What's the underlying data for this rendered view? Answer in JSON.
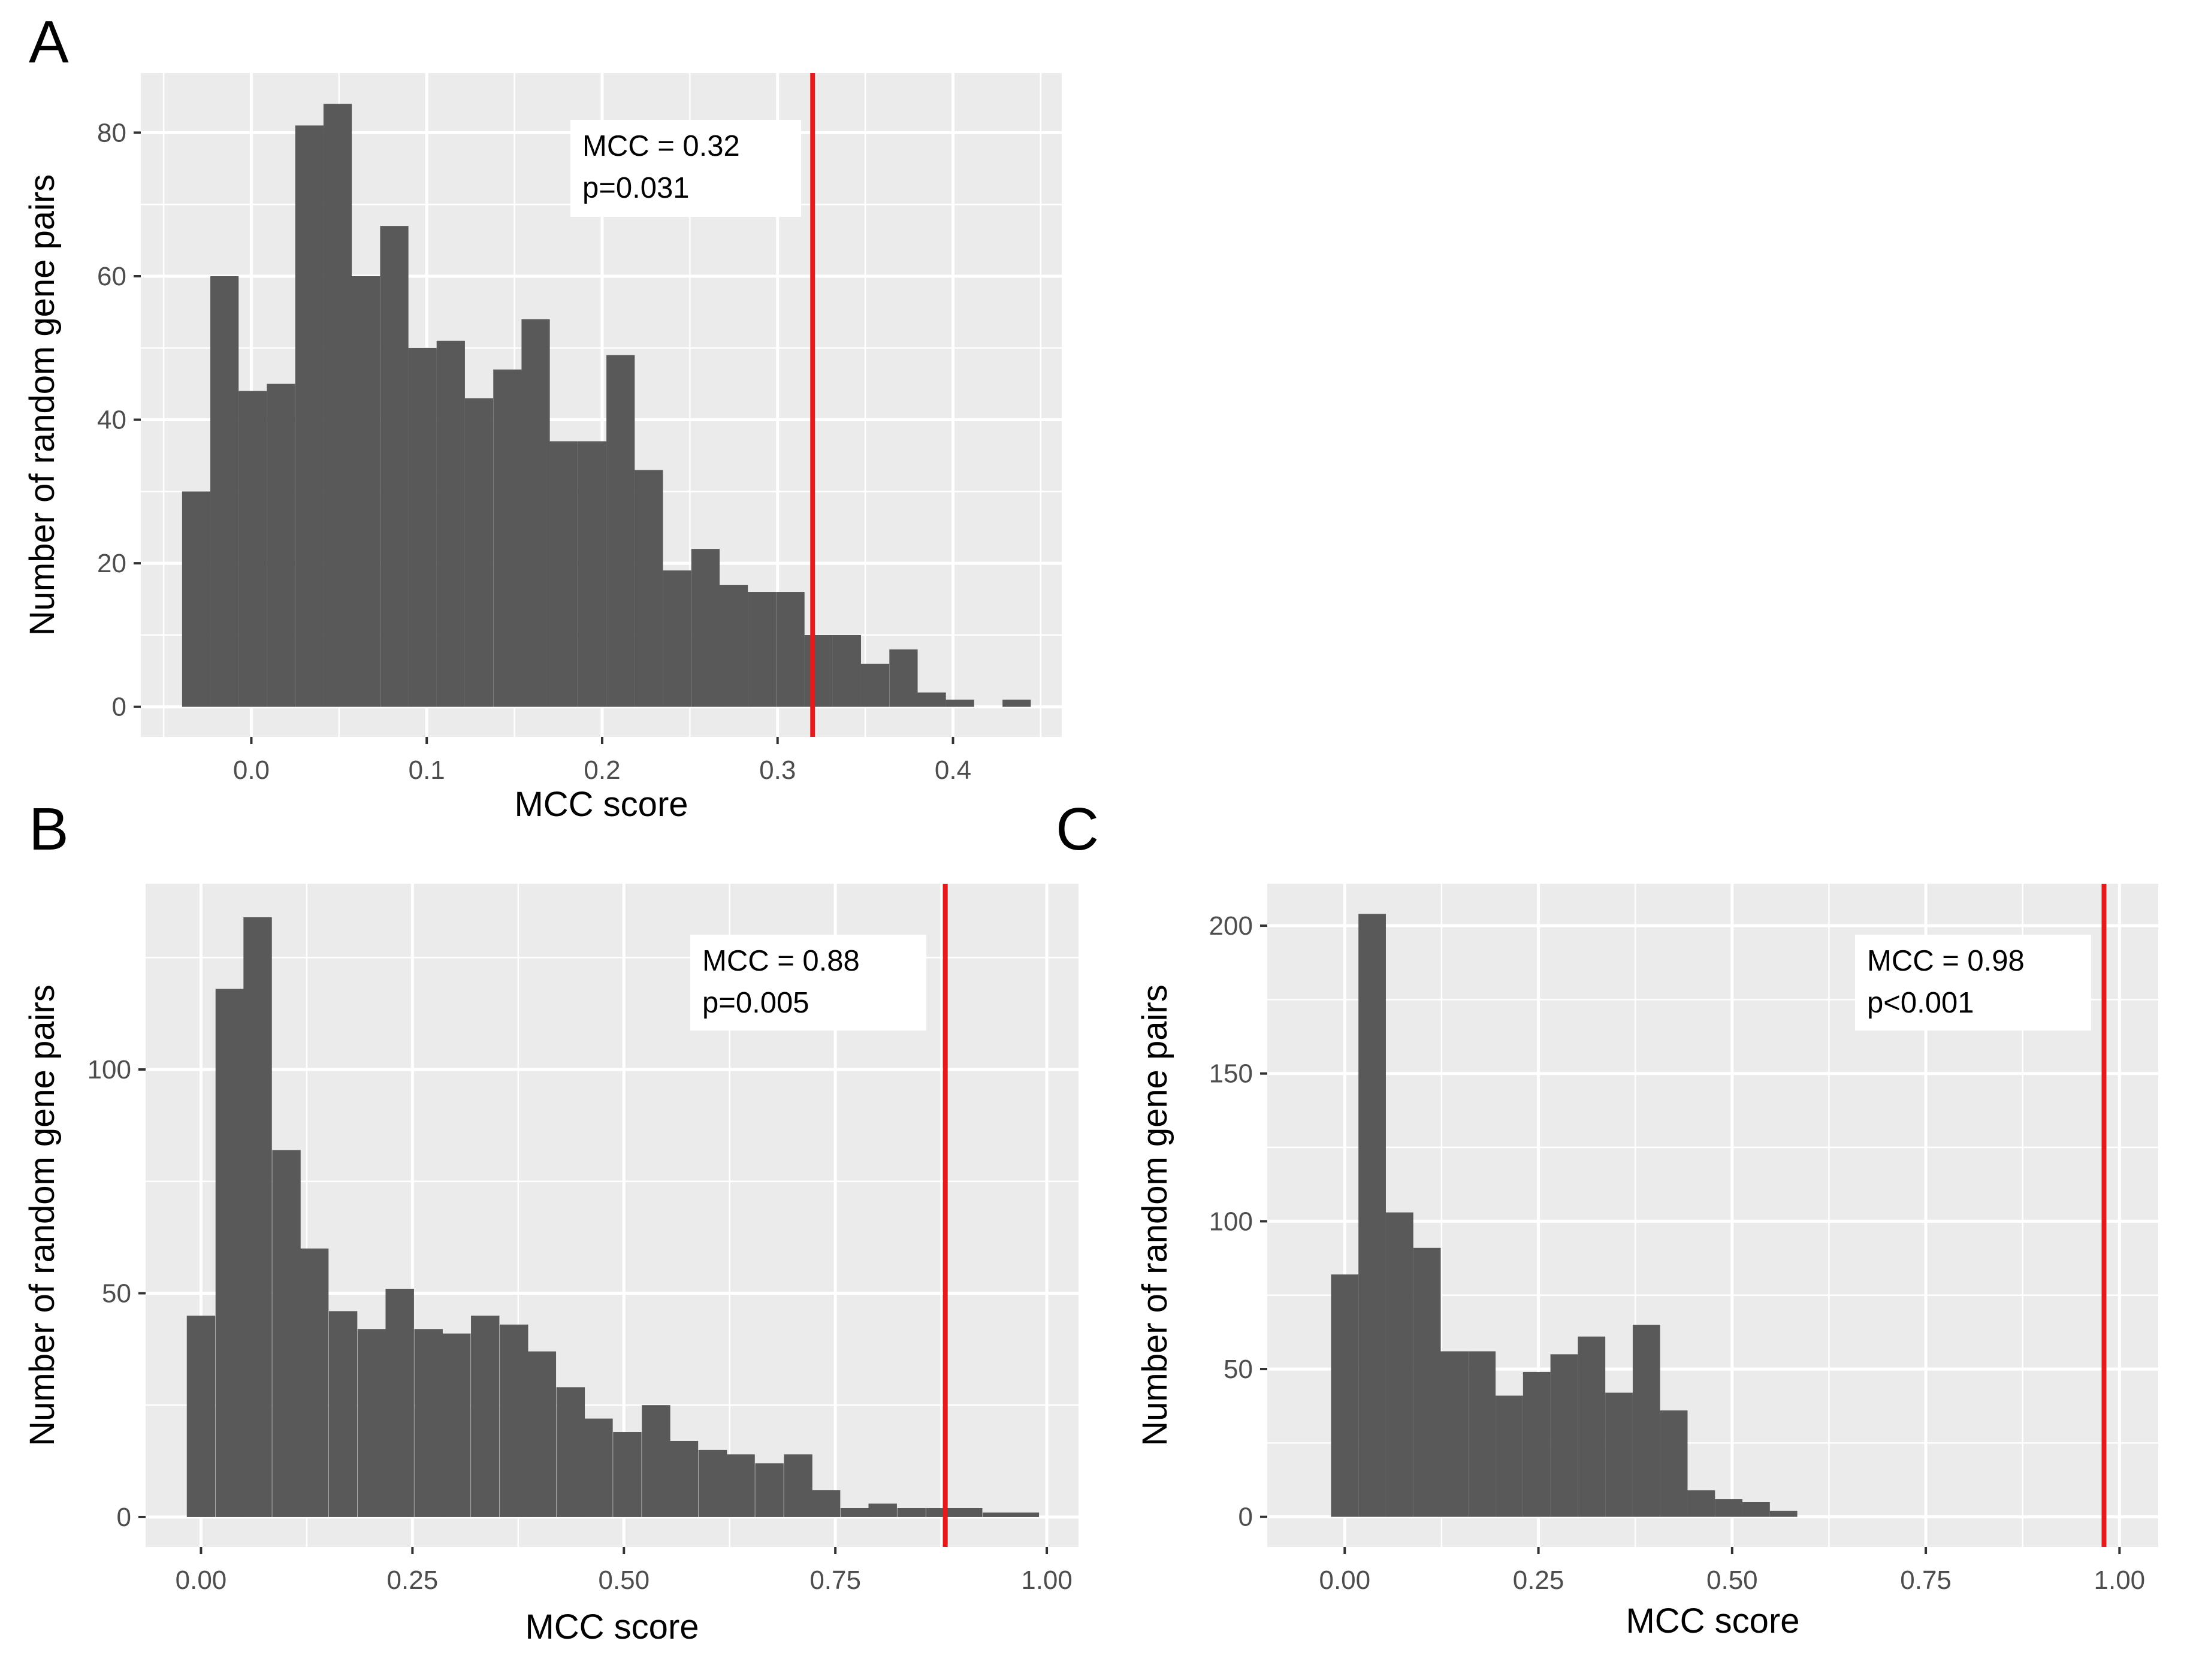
{
  "figure": {
    "panels": [
      {
        "letter": "A"
      },
      {
        "letter": "B"
      },
      {
        "letter": "C"
      }
    ]
  },
  "chart_data": [
    {
      "type": "bar",
      "panel": "A",
      "title": "",
      "xlabel": "MCC score",
      "ylabel": "Number of random gene pairs",
      "bin_width": 0.01613,
      "x": [
        -0.0314,
        -0.0153,
        0.0008,
        0.0169,
        0.0331,
        0.0492,
        0.0653,
        0.0815,
        0.0976,
        0.1137,
        0.1298,
        0.146,
        0.1621,
        0.1782,
        0.1944,
        0.2105,
        0.2266,
        0.2427,
        0.2589,
        0.275,
        0.2911,
        0.3073,
        0.3234,
        0.3395,
        0.3556,
        0.3718,
        0.3879,
        0.404,
        0.4202,
        0.4363
      ],
      "values": [
        30,
        60,
        44,
        45,
        81,
        84,
        60,
        67,
        50,
        51,
        43,
        47,
        54,
        37,
        37,
        49,
        33,
        19,
        22,
        17,
        16,
        16,
        10,
        10,
        6,
        8,
        2,
        1,
        0,
        1
      ],
      "xlim": [
        -0.063,
        0.462
      ],
      "ylim": [
        -4.2,
        88.3
      ],
      "xticks": [
        0.0,
        0.1,
        0.2,
        0.3,
        0.4
      ],
      "xtick_labels": [
        "0.0",
        "0.1",
        "0.2",
        "0.3",
        "0.4"
      ],
      "yticks": [
        0,
        20,
        40,
        60,
        80
      ],
      "ytick_labels": [
        "0",
        "20",
        "40",
        "60",
        "80"
      ],
      "vline": 0.32,
      "vline_color": "#e41a1c",
      "bar_color": "#595959",
      "panel_bg": "#ebebeb",
      "grid": true,
      "annotation": [
        "MCC = 0.32",
        "p=0.031"
      ]
    },
    {
      "type": "bar",
      "panel": "B",
      "title": "",
      "xlabel": "MCC score",
      "ylabel": "Number of random gene pairs",
      "bin_width": 0.0336,
      "x": [
        0.0,
        0.034,
        0.067,
        0.101,
        0.134,
        0.168,
        0.202,
        0.235,
        0.269,
        0.302,
        0.336,
        0.37,
        0.403,
        0.437,
        0.47,
        0.504,
        0.538,
        0.571,
        0.605,
        0.638,
        0.672,
        0.706,
        0.739,
        0.773,
        0.806,
        0.84,
        0.874,
        0.907,
        0.941,
        0.974
      ],
      "values": [
        45,
        118,
        134,
        82,
        60,
        46,
        42,
        51,
        42,
        41,
        45,
        43,
        37,
        29,
        22,
        19,
        25,
        17,
        15,
        14,
        12,
        14,
        6,
        2,
        3,
        2,
        2,
        2,
        1,
        1
      ],
      "xlim": [
        -0.0655,
        1.0375
      ],
      "ylim": [
        -6.7,
        141.5
      ],
      "xticks": [
        0.0,
        0.25,
        0.5,
        0.75,
        1.0
      ],
      "xtick_labels": [
        "0.00",
        "0.25",
        "0.50",
        "0.75",
        "1.00"
      ],
      "yticks": [
        0,
        50,
        100
      ],
      "ytick_labels": [
        "0",
        "50",
        "100"
      ],
      "vline": 0.88,
      "vline_color": "#e41a1c",
      "bar_color": "#595959",
      "panel_bg": "#ebebeb",
      "grid": true,
      "annotation": [
        "MCC = 0.88",
        "p=0.005"
      ]
    },
    {
      "type": "bar",
      "panel": "C",
      "title": "",
      "xlabel": "MCC score",
      "ylabel": "Number of random gene pairs",
      "bin_width": 0.0354,
      "x": [
        0.0,
        0.0354,
        0.0708,
        0.1062,
        0.1416,
        0.177,
        0.2124,
        0.2478,
        0.2832,
        0.3186,
        0.354,
        0.3894,
        0.4248,
        0.4602,
        0.4956,
        0.531,
        0.5664
      ],
      "values": [
        82,
        204,
        103,
        91,
        56,
        56,
        41,
        49,
        55,
        61,
        42,
        65,
        36,
        9,
        6,
        5,
        2
      ],
      "xlim": [
        -0.1,
        1.05
      ],
      "ylim": [
        -10.2,
        214.2
      ],
      "xticks": [
        0.0,
        0.25,
        0.5,
        0.75,
        1.0
      ],
      "xtick_labels": [
        "0.00",
        "0.25",
        "0.50",
        "0.75",
        "1.00"
      ],
      "yticks": [
        0,
        50,
        100,
        150,
        200
      ],
      "ytick_labels": [
        "0",
        "50",
        "100",
        "150",
        "200"
      ],
      "vline": 0.98,
      "vline_color": "#e41a1c",
      "bar_color": "#595959",
      "panel_bg": "#ebebeb",
      "grid": true,
      "annotation": [
        "MCC = 0.98",
        "p<0.001"
      ]
    }
  ]
}
